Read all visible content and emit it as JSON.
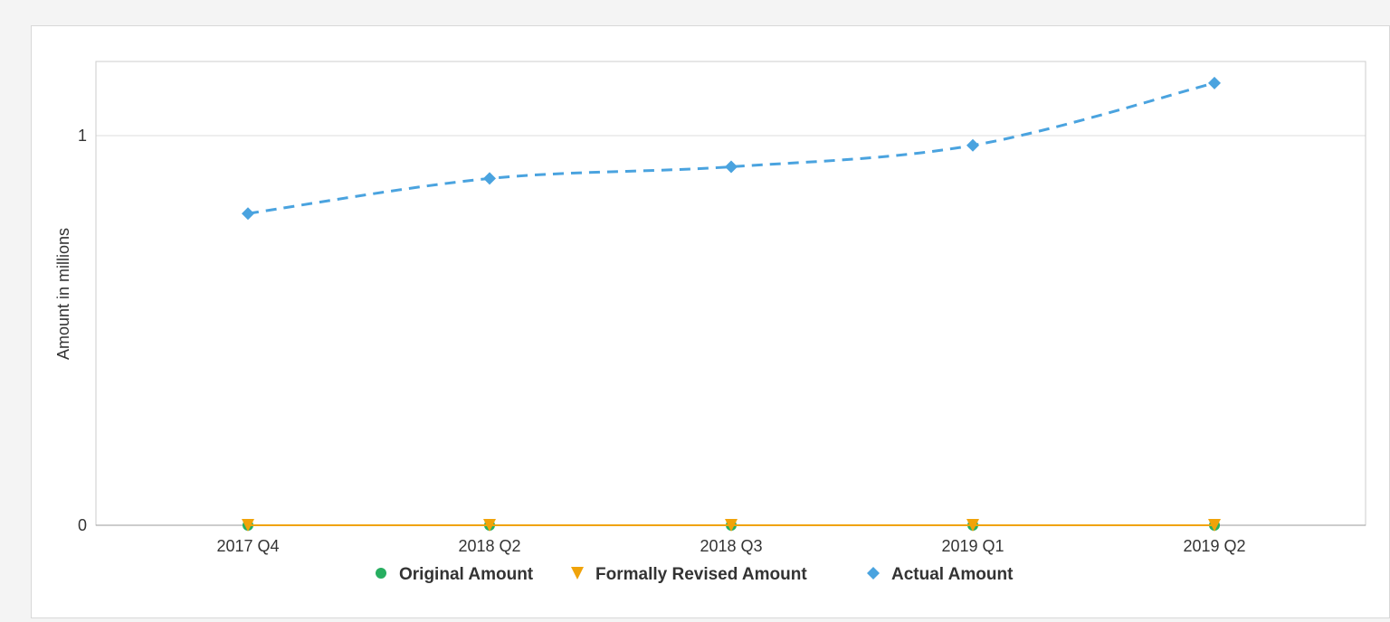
{
  "chart_data": {
    "type": "line",
    "categories": [
      "2017 Q4",
      "2018 Q2",
      "2018 Q3",
      "2019 Q1",
      "2019 Q2"
    ],
    "ylabel": "Amount in millions",
    "ylim": [
      0,
      1
    ],
    "yticks": [
      0,
      1
    ],
    "grid": true,
    "legend_position": "bottom",
    "series": [
      {
        "name": "Original Amount",
        "values": [
          0,
          0,
          0,
          0,
          0
        ],
        "color": "#27ae60",
        "marker": "circle",
        "line": "solid"
      },
      {
        "name": "Formally Revised Amount",
        "values": [
          0,
          0,
          0,
          0,
          0
        ],
        "color": "#f0a30a",
        "marker": "triangle-down",
        "line": "solid"
      },
      {
        "name": "Actual Amount",
        "values": [
          0.8,
          0.89,
          0.92,
          0.975,
          1.135
        ],
        "color": "#4aa3df",
        "marker": "diamond",
        "line": "dashed"
      }
    ]
  }
}
